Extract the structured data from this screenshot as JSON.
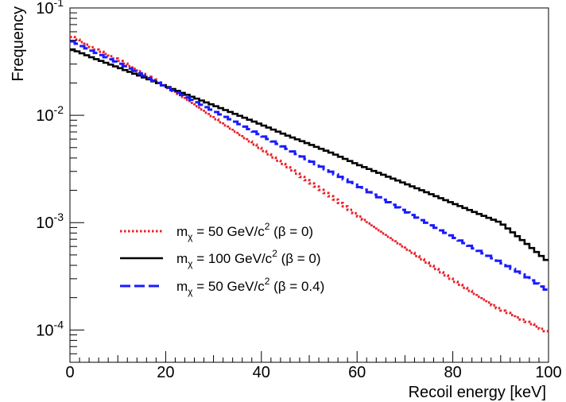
{
  "chart_data": {
    "type": "line",
    "style": "step-histogram",
    "xlabel": "Recoil energy [keV]",
    "ylabel": "Frequency",
    "xlim": [
      0,
      100
    ],
    "ylim": [
      5e-05,
      0.1
    ],
    "yscale": "log",
    "grid": false,
    "legend_position": "center-left",
    "x_ticks": [
      "0",
      "20",
      "40",
      "60",
      "80",
      "100"
    ],
    "y_ticks": [
      {
        "mantissa": "10",
        "exponent": "-1"
      },
      {
        "mantissa": "10",
        "exponent": "-2"
      },
      {
        "mantissa": "10",
        "exponent": "-3"
      },
      {
        "mantissa": "10",
        "exponent": "-4"
      }
    ],
    "x": [
      0,
      5,
      10,
      15,
      20,
      25,
      30,
      35,
      40,
      45,
      50,
      55,
      60,
      65,
      70,
      75,
      80,
      85,
      90,
      95,
      100
    ],
    "series": [
      {
        "legend": {
          "m": "m",
          "sub": "χ",
          "mid": " = 50 GeV/c",
          "sup": "2",
          "tail": " (β = 0)"
        },
        "color": "#e8202a",
        "dash": "dotted",
        "values": [
          0.055,
          0.042,
          0.033,
          0.025,
          0.0185,
          0.0135,
          0.0095,
          0.0068,
          0.0048,
          0.0034,
          0.0024,
          0.0017,
          0.00118,
          0.00082,
          0.00058,
          0.00041,
          0.00029,
          0.00021,
          0.000155,
          0.000122,
          9.5e-05
        ]
      },
      {
        "legend": {
          "m": "m",
          "sub": "χ",
          "mid": " = 100 GeV/c",
          "sup": "2",
          "tail": " (β = 0)"
        },
        "color": "#000000",
        "dash": "solid",
        "values": [
          0.042,
          0.034,
          0.028,
          0.023,
          0.0187,
          0.0152,
          0.0124,
          0.0101,
          0.0082,
          0.0066,
          0.0054,
          0.0044,
          0.0035,
          0.00285,
          0.00232,
          0.00188,
          0.00152,
          0.00123,
          0.001,
          0.00066,
          0.00043
        ]
      },
      {
        "legend": {
          "m": "m",
          "sub": "χ",
          "mid": " = 50 GeV/c",
          "sup": "2",
          "tail": " (β = 0.4)"
        },
        "color": "#1a1aff",
        "dash": "dashed",
        "values": [
          0.05,
          0.039,
          0.031,
          0.024,
          0.0185,
          0.0143,
          0.011,
          0.0085,
          0.0065,
          0.005,
          0.0038,
          0.0029,
          0.0022,
          0.00168,
          0.00128,
          0.00097,
          0.00074,
          0.00056,
          0.00043,
          0.00032,
          0.00023
        ]
      }
    ]
  }
}
